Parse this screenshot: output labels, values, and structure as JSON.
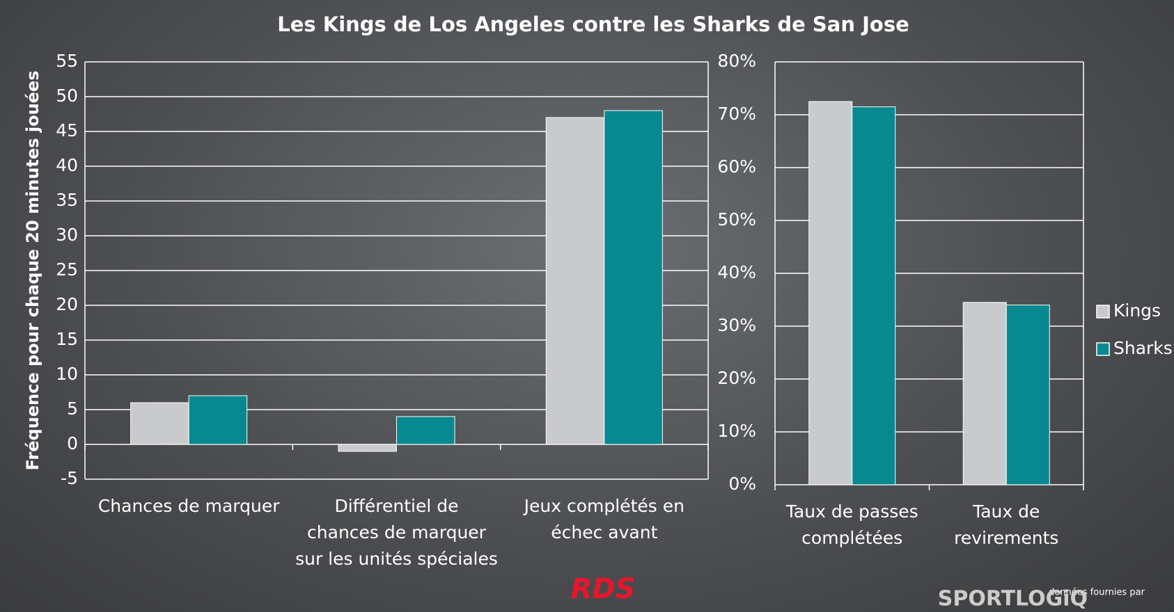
{
  "title": "Les Kings de Los Angeles contre les Sharks de San Jose",
  "source_note": "données fournies par",
  "source_logo": "SPORTLOGiQ",
  "broadcaster_logo": "RDS",
  "chart_data": [
    {
      "type": "bar",
      "y_label": "Fréquence pour chaque 20 minutes jouées",
      "categories": [
        "Chances de marquer",
        "Différentiel de\nchances de marquer\nsur les unités spéciales",
        "Jeux complétés en\néchec avant"
      ],
      "series": [
        {
          "name": "Kings",
          "color": "#c9cacc",
          "values": [
            6,
            -1,
            47
          ]
        },
        {
          "name": "Sharks",
          "color": "#07898f",
          "values": [
            7,
            4,
            48
          ]
        }
      ],
      "ylim": [
        -5,
        55
      ],
      "yticks": [
        -5,
        0,
        5,
        10,
        15,
        20,
        25,
        30,
        35,
        40,
        45,
        50,
        55
      ],
      "grid": true
    },
    {
      "type": "bar",
      "categories": [
        "Taux de passes\ncomplétées",
        "Taux de\nrevirements"
      ],
      "series": [
        {
          "name": "Kings",
          "color": "#c9cacc",
          "values": [
            72.5,
            34.5
          ]
        },
        {
          "name": "Sharks",
          "color": "#07898f",
          "values": [
            71.5,
            34
          ]
        }
      ],
      "ylim": [
        0,
        80
      ],
      "yticks": [
        {
          "value": 0,
          "label": "0%"
        },
        {
          "value": 10,
          "label": "10%"
        },
        {
          "value": 20,
          "label": "20%"
        },
        {
          "value": 30,
          "label": "30%"
        },
        {
          "value": 40,
          "label": "40%"
        },
        {
          "value": 50,
          "label": "50%"
        },
        {
          "value": 60,
          "label": "60%"
        },
        {
          "value": 70,
          "label": "70%"
        },
        {
          "value": 80,
          "label": "80%"
        }
      ],
      "grid": true,
      "legend": "right"
    }
  ]
}
